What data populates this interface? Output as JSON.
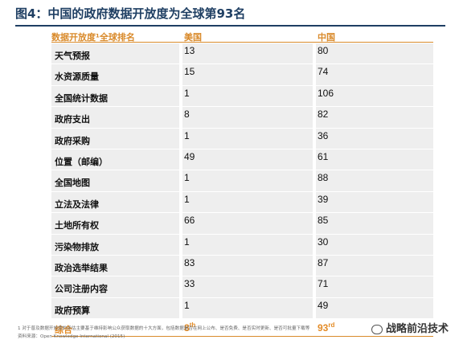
{
  "figure": {
    "title": "图4：中国的政府数据开放度为全球第93名"
  },
  "table": {
    "headers": [
      "数据开放度¹全球排名",
      "美国",
      "中国"
    ],
    "rows": [
      {
        "label": "天气预报",
        "us": "13",
        "cn": "80"
      },
      {
        "label": "水资源质量",
        "us": "15",
        "cn": "74"
      },
      {
        "label": "全国统计数据",
        "us": "1",
        "cn": "106"
      },
      {
        "label": "政府支出",
        "us": "8",
        "cn": "82"
      },
      {
        "label": "政府采购",
        "us": "1",
        "cn": "36"
      },
      {
        "label": "位置（邮编）",
        "us": "49",
        "cn": "61"
      },
      {
        "label": "全国地图",
        "us": "1",
        "cn": "88"
      },
      {
        "label": "立法及法律",
        "us": "1",
        "cn": "39"
      },
      {
        "label": "土地所有权",
        "us": "66",
        "cn": "85"
      },
      {
        "label": "污染物排放",
        "us": "1",
        "cn": "30"
      },
      {
        "label": "政治选举结果",
        "us": "83",
        "cn": "87"
      },
      {
        "label": "公司注册内容",
        "us": "33",
        "cn": "71"
      },
      {
        "label": "政府预算",
        "us": "1",
        "cn": "49"
      }
    ],
    "total": {
      "label": "综合",
      "us": "8",
      "us_sup": "th",
      "cn": "93",
      "cn_sup": "rd"
    }
  },
  "footnote": {
    "note": "1 对于普及数据开放度的评估主要基于维持影响公众获取数据的十大方面，包括数据是否在网上公布、是否免费、是否实时更新、是否可批量下载等",
    "source": "资料来源：Open Knowledge International (2015)"
  },
  "watermark": {
    "text": "战略前沿技术"
  },
  "colors": {
    "title": "#1f3f63",
    "accent": "#d98a2b",
    "row_bg": "#eeeeee"
  }
}
